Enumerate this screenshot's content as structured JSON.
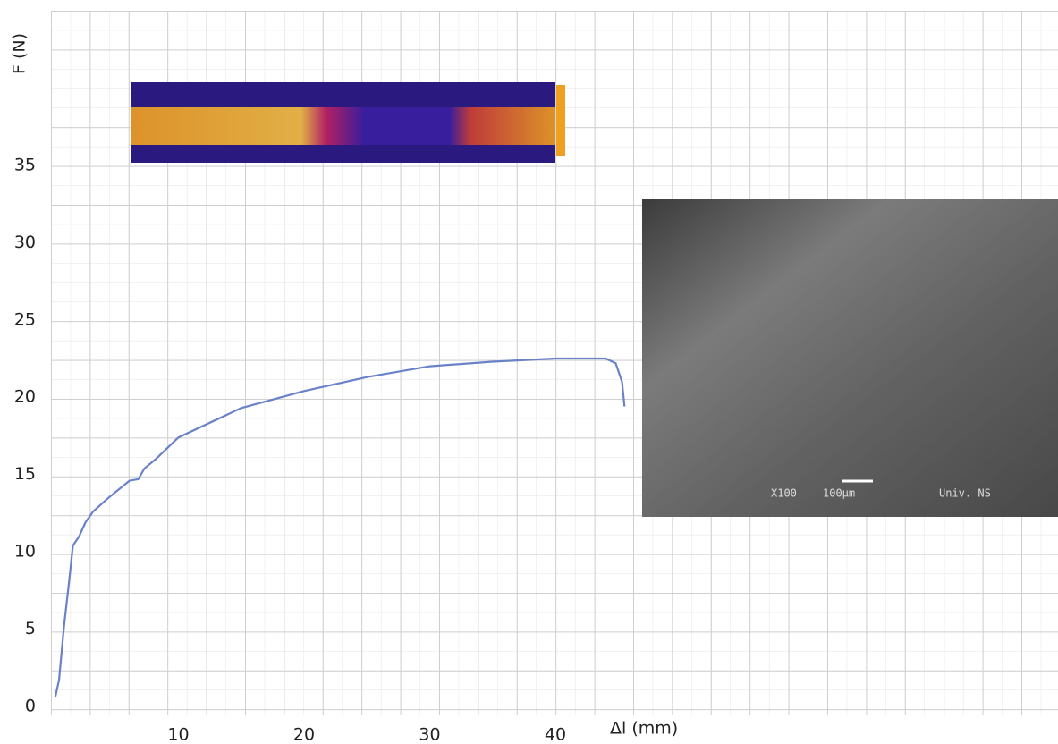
{
  "chart_data": {
    "type": "line",
    "y_label": "F (N)",
    "x_label": "Δl  (mm)",
    "xlim": [
      0,
      80
    ],
    "ylim": [
      0,
      45
    ],
    "xticks": [
      10,
      20,
      30,
      40
    ],
    "yticks": [
      0,
      5,
      10,
      15,
      20,
      25,
      30,
      35
    ],
    "series": [
      {
        "color": "#6a82c8",
        "x": [
          0.2,
          0.5,
          0.9,
          1.3,
          1.6,
          2.1,
          2.6,
          3.2,
          4.3,
          6.1,
          6.8,
          7.3,
          8.2,
          10,
          15,
          20,
          25,
          30,
          35,
          40,
          44,
          44.8,
          45.3,
          45.5
        ],
        "values": [
          0.6,
          1.7,
          5.2,
          8.1,
          10.4,
          11.0,
          11.9,
          12.6,
          13.4,
          14.6,
          14.7,
          15.4,
          16.0,
          17.4,
          19.3,
          20.4,
          21.3,
          22.0,
          22.3,
          22.5,
          22.5,
          22.2,
          21.0,
          19.4
        ]
      }
    ],
    "sem_labels": [
      "X100",
      "100μm",
      "Univ. NS"
    ]
  }
}
